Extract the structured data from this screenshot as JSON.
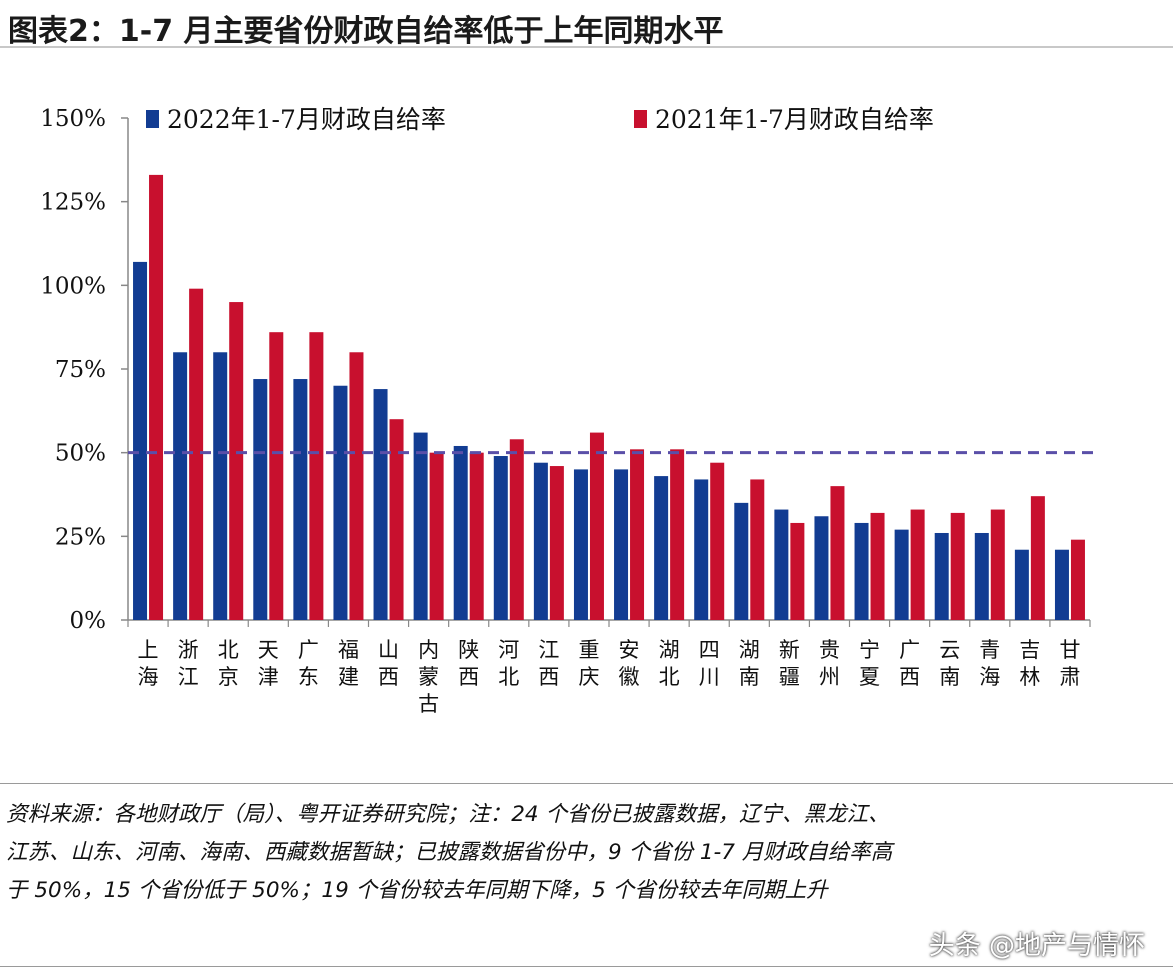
{
  "title": "图表2：1-7 月主要省份财政自给率低于上年同期水平",
  "chart_data": {
    "type": "bar",
    "categories": [
      "上海",
      "浙江",
      "北京",
      "天津",
      "广东",
      "福建",
      "山西",
      "内蒙古",
      "陕西",
      "河北",
      "江西",
      "重庆",
      "安徽",
      "湖北",
      "四川",
      "湖南",
      "新疆",
      "贵州",
      "宁夏",
      "广西",
      "云南",
      "青海",
      "吉林",
      "甘肃"
    ],
    "series": [
      {
        "name": "2022年1-7月财政自给率",
        "color": "#123c92",
        "values": [
          107,
          80,
          80,
          72,
          72,
          70,
          69,
          56,
          52,
          49,
          47,
          45,
          45,
          43,
          42,
          35,
          33,
          31,
          29,
          27,
          26,
          26,
          21,
          21
        ]
      },
      {
        "name": "2021年1-7月财政自给率",
        "color": "#c8102e",
        "values": [
          133,
          99,
          95,
          86,
          86,
          80,
          60,
          50,
          50,
          54,
          46,
          56,
          51,
          51,
          47,
          42,
          29,
          40,
          32,
          33,
          32,
          33,
          37,
          24
        ]
      }
    ],
    "ylim": [
      0,
      150
    ],
    "yticks": [
      "0%",
      "25%",
      "50%",
      "75%",
      "100%",
      "125%",
      "150%"
    ],
    "reference_line": 50,
    "reference_color": "#5a4fa8",
    "legend": "top"
  },
  "notes": [
    "资料来源：各地财政厅（局）、粤开证券研究院；注：24 个省份已披露数据，辽宁、黑龙江、",
    "江苏、山东、河南、海南、西藏数据暂缺；已披露数据省份中，9 个省份 1-7 月财政自给率高",
    "于 50%，15 个省份低于 50%；19 个省份较去年同期下降，5 个省份较去年同期上升"
  ],
  "watermark": "头条 @地产与情怀"
}
